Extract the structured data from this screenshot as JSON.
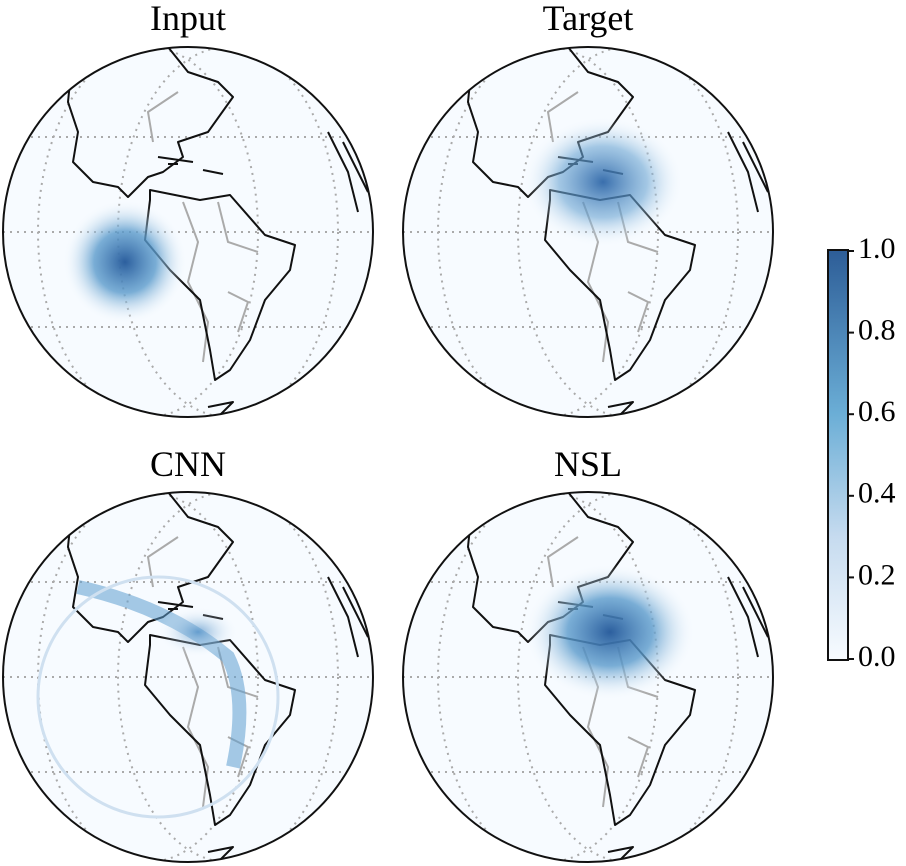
{
  "panels": [
    {
      "title": "Input"
    },
    {
      "title": "Target"
    },
    {
      "title": "CNN"
    },
    {
      "title": "NSL"
    }
  ],
  "colorbar": {
    "lim": [
      0,
      1
    ],
    "ticks": [
      {
        "value": 0,
        "label": "0.0"
      },
      0.2,
      0.4,
      0.6,
      0.8,
      {
        "value": 1,
        "label": "1.0"
      }
    ]
  }
}
